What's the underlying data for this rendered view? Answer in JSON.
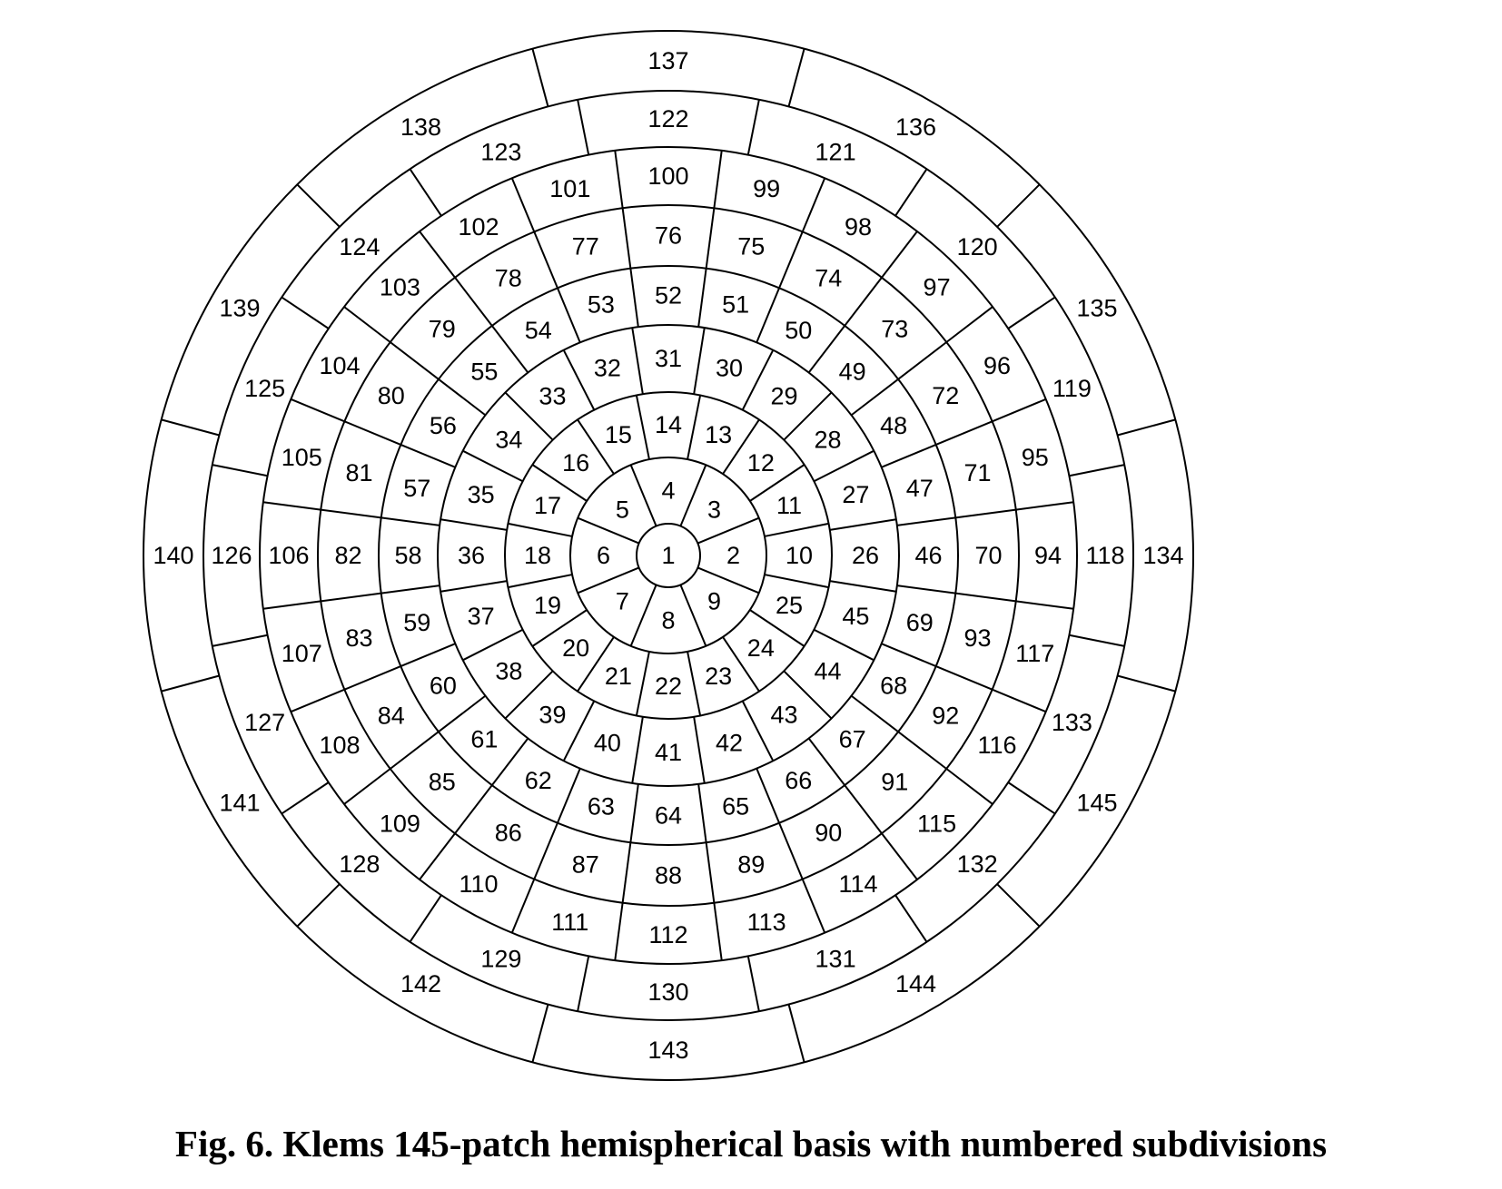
{
  "diagram": {
    "name": "Klems basis",
    "line_color": "#000000",
    "rings": [
      {
        "patches": 1,
        "labels": [
          "1"
        ]
      },
      {
        "patches": 8,
        "labels": [
          "2",
          "3",
          "4",
          "5",
          "6",
          "7",
          "8",
          "9"
        ]
      },
      {
        "patches": 16,
        "labels": [
          "10",
          "11",
          "12",
          "13",
          "14",
          "15",
          "16",
          "17",
          "18",
          "19",
          "20",
          "21",
          "22",
          "23",
          "24",
          "25"
        ]
      },
      {
        "patches": 20,
        "labels": [
          "26",
          "27",
          "28",
          "29",
          "30",
          "31",
          "32",
          "33",
          "34",
          "35",
          "36",
          "37",
          "38",
          "39",
          "40",
          "41",
          "42",
          "43",
          "44",
          "45"
        ]
      },
      {
        "patches": 24,
        "labels": [
          "46",
          "47",
          "48",
          "49",
          "50",
          "51",
          "52",
          "53",
          "54",
          "55",
          "56",
          "57",
          "58",
          "59",
          "60",
          "61",
          "62",
          "63",
          "64",
          "65",
          "66",
          "67",
          "68",
          "69"
        ]
      },
      {
        "patches": 24,
        "labels": [
          "70",
          "71",
          "72",
          "73",
          "74",
          "75",
          "76",
          "77",
          "78",
          "79",
          "80",
          "81",
          "82",
          "83",
          "84",
          "85",
          "86",
          "87",
          "88",
          "89",
          "90",
          "91",
          "92",
          "93"
        ]
      },
      {
        "patches": 24,
        "labels": [
          "94",
          "95",
          "96",
          "97",
          "98",
          "99",
          "100",
          "101",
          "102",
          "103",
          "104",
          "105",
          "106",
          "107",
          "108",
          "109",
          "110",
          "111",
          "112",
          "113",
          "114",
          "115",
          "116",
          "117"
        ]
      },
      {
        "patches": 16,
        "labels": [
          "118",
          "119",
          "120",
          "121",
          "122",
          "123",
          "124",
          "125",
          "126",
          "127",
          "128",
          "129",
          "130",
          "131",
          "132",
          "133"
        ]
      },
      {
        "patches": 12,
        "labels": [
          "134",
          "135",
          "136",
          "137",
          "138",
          "139",
          "140",
          "141",
          "142",
          "143",
          "144",
          "145"
        ]
      }
    ]
  },
  "caption": "Fig. 6.  Klems 145-patch hemispherical basis with numbered subdivisions"
}
